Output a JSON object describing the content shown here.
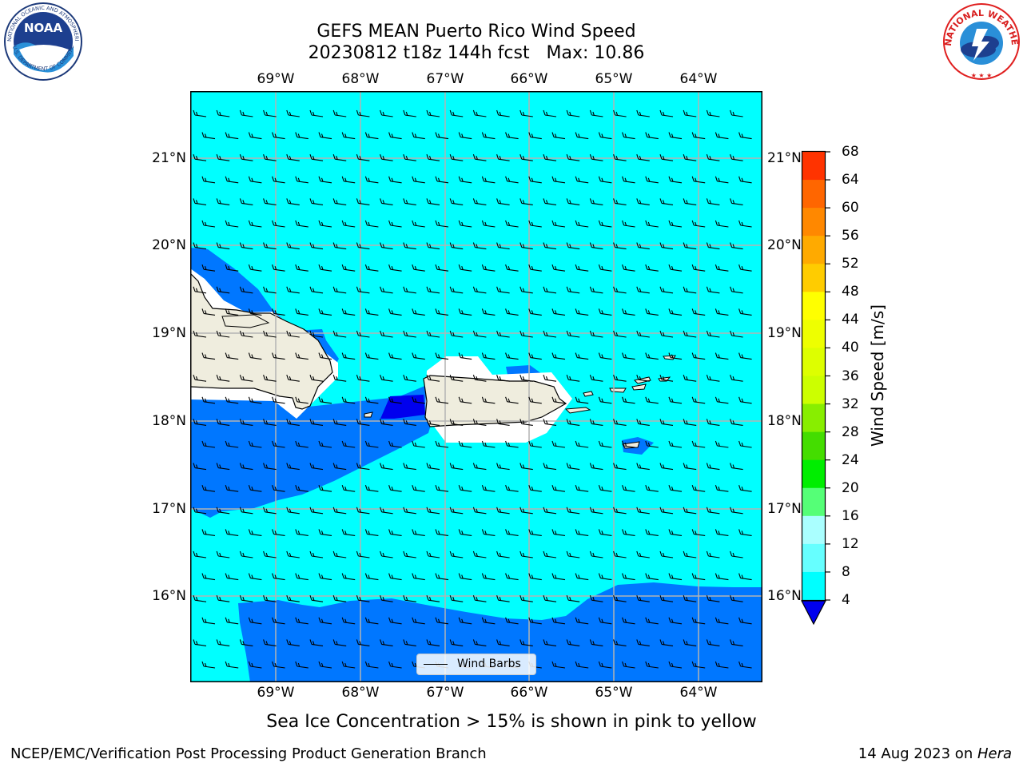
{
  "title": {
    "line1": "GEFS MEAN Puerto Rico Wind Speed",
    "line2": "20230812 t18z 144h fcst   Max: 10.86"
  },
  "logos": {
    "noaa": {
      "text": "NOAA",
      "icon": "noaa-logo"
    },
    "nws": {
      "icon": "nws-logo"
    }
  },
  "map": {
    "lon_labels": [
      "69°W",
      "68°W",
      "67°W",
      "66°W",
      "65°W",
      "64°W"
    ],
    "lat_labels": [
      "21°N",
      "20°N",
      "19°N",
      "18°N",
      "17°N",
      "16°N"
    ],
    "legend_label": "Wind Barbs",
    "max_value": 10.86
  },
  "colorbar": {
    "title": "Wind Speed [m/s]",
    "ticks": [
      "68",
      "64",
      "60",
      "56",
      "52",
      "48",
      "44",
      "40",
      "36",
      "32",
      "28",
      "24",
      "20",
      "16",
      "12",
      "8",
      "4"
    ],
    "colors": [
      "#ff0000",
      "#ff3300",
      "#ff6600",
      "#ff8800",
      "#ffaa00",
      "#ffcc00",
      "#ffff00",
      "#eeff00",
      "#ddff00",
      "#ccff00",
      "#88ee00",
      "#44dd00",
      "#00ee00",
      "#55ff77",
      "#aaffff",
      "#66ffff",
      "#00ffff",
      "#0077ff",
      "#0000ee"
    ],
    "extend": "min"
  },
  "map_colors": {
    "speed_8_12": "#00ffff",
    "speed_4_8": "#0077ff",
    "speed_below_4": "#0000ee",
    "land": "#efedde",
    "masked": "#ffffff",
    "grid": "#b3b3b3"
  },
  "note": "Sea Ice Concentration > 15% is shown in pink to yellow",
  "footer": {
    "left": "NCEP/EMC/Verification Post Processing Product Generation Branch",
    "date": "14 Aug 2023 on ",
    "host": "Hera"
  }
}
